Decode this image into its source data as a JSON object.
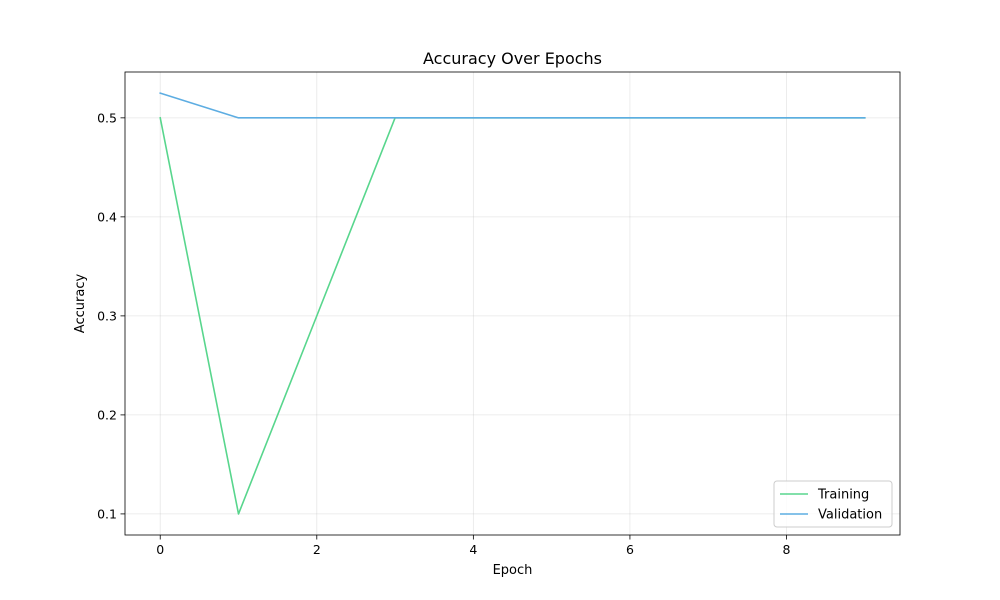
{
  "chart_data": {
    "type": "line",
    "title": "Accuracy Over Epochs",
    "xlabel": "Epoch",
    "ylabel": "Accuracy",
    "xlim": [
      -0.45,
      9.45
    ],
    "ylim": [
      0.0787,
      0.5463
    ],
    "xticks": [
      0,
      2,
      4,
      6,
      8
    ],
    "yticks": [
      0.1,
      0.2,
      0.3,
      0.4,
      0.5
    ],
    "xtick_labels": [
      "0",
      "2",
      "4",
      "6",
      "8"
    ],
    "ytick_labels": [
      "0.1",
      "0.2",
      "0.3",
      "0.4",
      "0.5"
    ],
    "grid": true,
    "legend_position": "lower-right",
    "x": [
      0,
      1,
      2,
      3,
      4,
      5,
      6,
      7,
      8,
      9
    ],
    "series": [
      {
        "name": "Training",
        "color": "#58d68d",
        "values": [
          0.5,
          0.1,
          0.3,
          0.5,
          0.5,
          0.5,
          0.5,
          0.5,
          0.5,
          0.5
        ]
      },
      {
        "name": "Validation",
        "color": "#5dade2",
        "values": [
          0.525,
          0.5,
          0.5,
          0.5,
          0.5,
          0.5,
          0.5,
          0.5,
          0.5,
          0.5
        ]
      }
    ]
  }
}
